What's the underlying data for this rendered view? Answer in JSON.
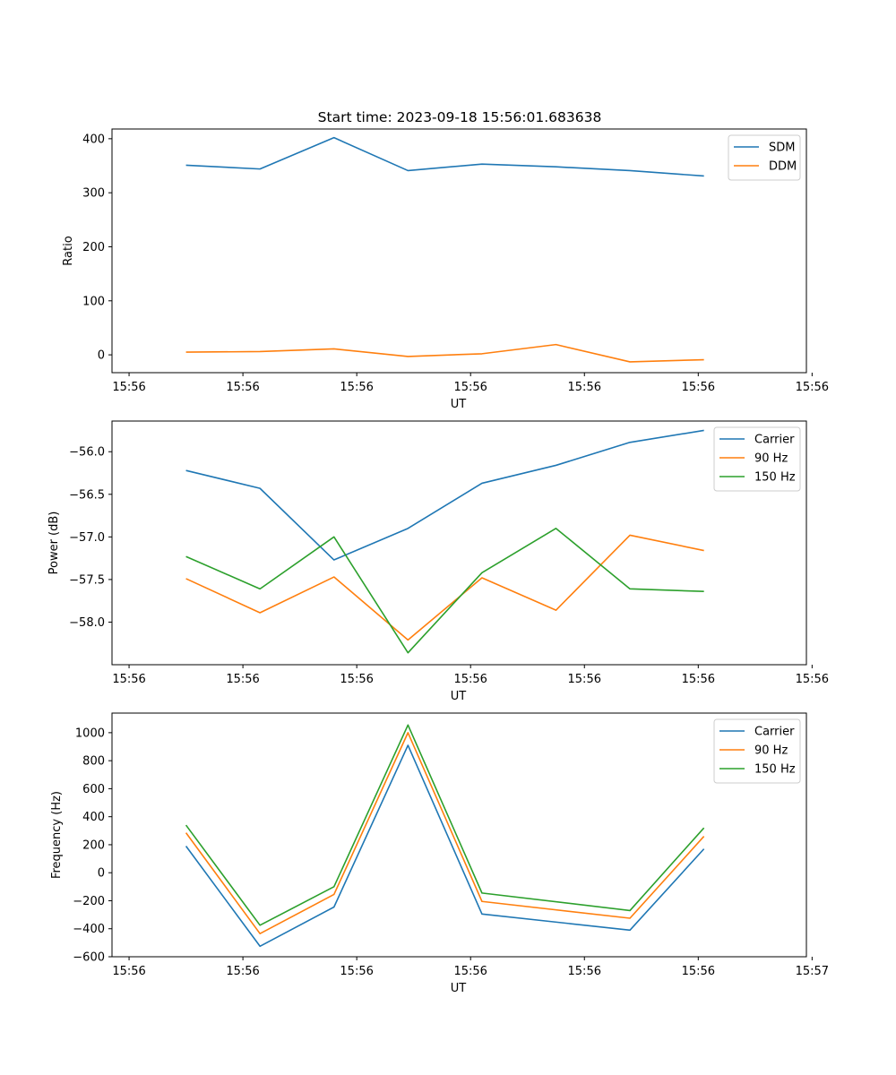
{
  "figure": {
    "title": "Start time: 2023-09-18 15:56:01.683638"
  },
  "chart_data": [
    {
      "type": "line",
      "title": "Start time: 2023-09-18 15:56:01.683638",
      "xlabel": "UT",
      "ylabel": "Ratio",
      "x_tick_labels": [
        "15:56",
        "15:56",
        "15:56",
        "15:56",
        "15:56",
        "15:56",
        "15:56"
      ],
      "xlim": [
        -0.15,
        5.95
      ],
      "x_ticks": [
        0,
        1,
        2,
        3,
        4,
        5,
        6
      ],
      "ylim": [
        -33,
        418
      ],
      "y_ticks": [
        0,
        100,
        200,
        300,
        400
      ],
      "y_tick_labels": [
        "0",
        "100",
        "200",
        "300",
        "400"
      ],
      "legend_position": "top-right",
      "x": [
        0.5,
        1.15,
        1.8,
        2.45,
        3.1,
        3.75,
        4.4,
        5.05
      ],
      "series": [
        {
          "name": "SDM",
          "color": "#1f77b4",
          "values": [
            351,
            344,
            402,
            341,
            353,
            348,
            341,
            331
          ]
        },
        {
          "name": "DDM",
          "color": "#ff7f0e",
          "values": [
            5,
            6,
            11,
            -3,
            2,
            19,
            -13,
            -9
          ]
        }
      ]
    },
    {
      "type": "line",
      "title": "",
      "xlabel": "UT",
      "ylabel": "Power (dB)",
      "x_tick_labels": [
        "15:56",
        "15:56",
        "15:56",
        "15:56",
        "15:56",
        "15:56",
        "15:56"
      ],
      "xlim": [
        -0.15,
        5.95
      ],
      "x_ticks": [
        0,
        1,
        2,
        3,
        4,
        5,
        6
      ],
      "ylim": [
        -58.5,
        -55.64
      ],
      "y_ticks": [
        -58.0,
        -57.5,
        -57.0,
        -56.5,
        -56.0
      ],
      "y_tick_labels": [
        "−58.0",
        "−57.5",
        "−57.0",
        "−56.5",
        "−56.0"
      ],
      "legend_position": "top-right",
      "x": [
        0.5,
        1.15,
        1.8,
        2.45,
        3.1,
        3.75,
        4.4,
        5.05
      ],
      "series": [
        {
          "name": "Carrier",
          "color": "#1f77b4",
          "values": [
            -56.22,
            -56.43,
            -57.27,
            -56.9,
            -56.37,
            -56.16,
            -55.89,
            -55.75
          ]
        },
        {
          "name": "90 Hz",
          "color": "#ff7f0e",
          "values": [
            -57.49,
            -57.89,
            -57.47,
            -58.21,
            -57.48,
            -57.86,
            -56.98,
            -57.16
          ]
        },
        {
          "name": "150 Hz",
          "color": "#2ca02c",
          "values": [
            -57.23,
            -57.61,
            -57.0,
            -58.36,
            -57.42,
            -56.9,
            -57.61,
            -57.64
          ]
        }
      ]
    },
    {
      "type": "line",
      "title": "",
      "xlabel": "UT",
      "ylabel": "Frequency (Hz)",
      "x_tick_labels": [
        "15:56",
        "15:56",
        "15:56",
        "15:56",
        "15:56",
        "15:56",
        "15:57"
      ],
      "xlim": [
        -0.15,
        5.95
      ],
      "x_ticks": [
        0,
        1,
        2,
        3,
        4,
        5,
        6
      ],
      "ylim": [
        -600,
        1140
      ],
      "y_ticks": [
        -600,
        -400,
        -200,
        0,
        200,
        400,
        600,
        800,
        1000
      ],
      "y_tick_labels": [
        "−600",
        "−400",
        "−200",
        "0",
        "200",
        "400",
        "600",
        "800",
        "1000"
      ],
      "legend_position": "top-right",
      "x": [
        0.5,
        1.15,
        1.8,
        2.45,
        3.1,
        4.4,
        5.05
      ],
      "series": [
        {
          "name": "Carrier",
          "color": "#1f77b4",
          "values": [
            190,
            -525,
            -245,
            910,
            -295,
            -410,
            170
          ]
        },
        {
          "name": "90 Hz",
          "color": "#ff7f0e",
          "values": [
            285,
            -435,
            -155,
            1000,
            -205,
            -325,
            260
          ]
        },
        {
          "name": "150 Hz",
          "color": "#2ca02c",
          "values": [
            340,
            -375,
            -100,
            1055,
            -145,
            -270,
            320
          ]
        }
      ]
    }
  ]
}
